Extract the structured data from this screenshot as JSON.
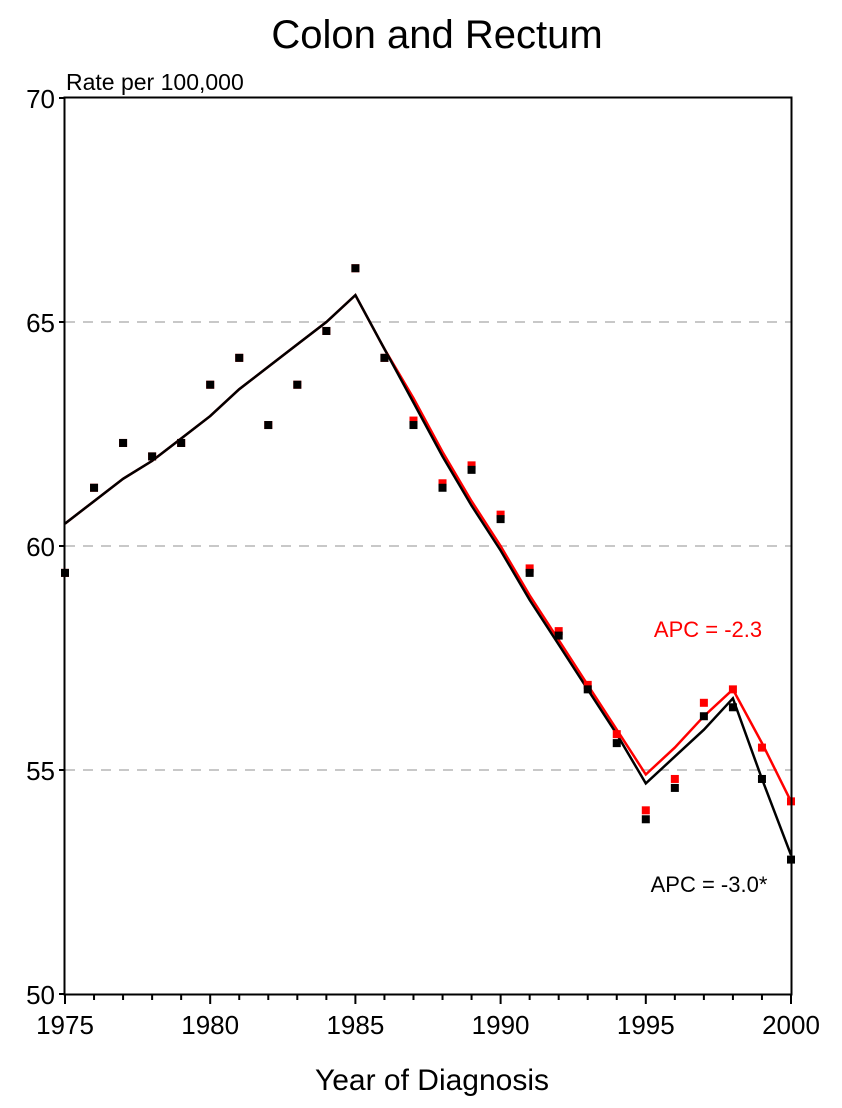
{
  "chart_data": {
    "type": "scatter",
    "title": "Colon and Rectum",
    "ylabel": "Rate per 100,000",
    "xlabel": "Year of Diagnosis",
    "xlim": [
      1975,
      2000
    ],
    "ylim": [
      50,
      70
    ],
    "xticks": [
      "1975",
      "1980",
      "1985",
      "1990",
      "1995",
      "2000"
    ],
    "yticks": [
      "50",
      "55",
      "60",
      "65",
      "70"
    ],
    "grid": "horizontal dashed at 55, 60, 65",
    "series": [
      {
        "color": "#ff0000",
        "x": [
          1975,
          1976,
          1977,
          1978,
          1979,
          1980,
          1981,
          1982,
          1983,
          1984,
          1985,
          1986,
          1987,
          1988,
          1989,
          1990,
          1991,
          1992,
          1993,
          1994,
          1995,
          1996,
          1997,
          1998,
          1999,
          2000
        ],
        "observed": [
          59.4,
          61.3,
          62.3,
          62.0,
          62.3,
          63.6,
          64.2,
          62.7,
          63.6,
          64.8,
          66.2,
          64.2,
          62.8,
          61.4,
          61.8,
          60.7,
          59.5,
          58.1,
          56.9,
          55.8,
          54.1,
          54.8,
          56.5,
          56.8,
          55.5,
          54.3
        ],
        "fit_x": [
          1975,
          1976,
          1977,
          1978,
          1979,
          1980,
          1981,
          1982,
          1983,
          1984,
          1985,
          1986,
          1987,
          1988,
          1989,
          1990,
          1991,
          1992,
          1993,
          1994,
          1995,
          1996,
          1997,
          1998,
          1999,
          2000
        ],
        "fit_y": [
          60.5,
          61.0,
          61.5,
          61.9,
          62.4,
          62.9,
          63.5,
          64.0,
          64.5,
          65.0,
          65.6,
          64.4,
          63.3,
          62.1,
          61.0,
          60.0,
          58.9,
          57.9,
          56.9,
          55.9,
          54.9,
          55.5,
          56.2,
          56.8,
          55.6,
          54.3
        ],
        "annotation": "APC = -2.3"
      },
      {
        "color": "#000000",
        "x": [
          1975,
          1976,
          1977,
          1978,
          1979,
          1980,
          1981,
          1982,
          1983,
          1984,
          1985,
          1986,
          1987,
          1988,
          1989,
          1990,
          1991,
          1992,
          1993,
          1994,
          1995,
          1996,
          1997,
          1998,
          1999,
          2000
        ],
        "observed": [
          59.4,
          61.3,
          62.3,
          62.0,
          62.3,
          63.6,
          64.2,
          62.7,
          63.6,
          64.8,
          66.2,
          64.2,
          62.7,
          61.3,
          61.7,
          60.6,
          59.4,
          58.0,
          56.8,
          55.6,
          53.9,
          54.6,
          56.2,
          56.4,
          54.8,
          53.0
        ],
        "fit_x": [
          1975,
          1976,
          1977,
          1978,
          1979,
          1980,
          1981,
          1982,
          1983,
          1984,
          1985,
          1986,
          1987,
          1988,
          1989,
          1990,
          1991,
          1992,
          1993,
          1994,
          1995,
          1996,
          1997,
          1998,
          1999,
          2000
        ],
        "fit_y": [
          60.5,
          61.0,
          61.5,
          61.9,
          62.4,
          62.9,
          63.5,
          64.0,
          64.5,
          65.0,
          65.6,
          64.4,
          63.2,
          62.0,
          60.9,
          59.9,
          58.8,
          57.8,
          56.8,
          55.8,
          54.7,
          55.3,
          55.9,
          56.6,
          54.8,
          53.1
        ],
        "annotation": "APC = -3.0*"
      }
    ]
  }
}
